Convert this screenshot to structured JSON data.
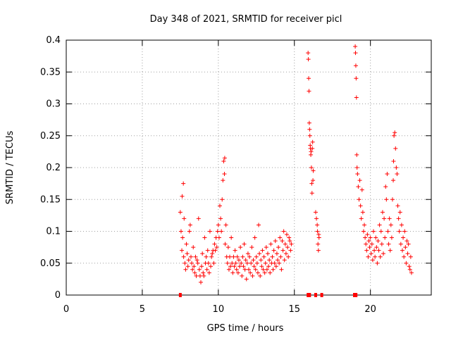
{
  "chart_data": {
    "type": "scatter",
    "title": "Day 348 of 2021, SRMTID for receiver picl",
    "xlabel": "GPS time / hours",
    "ylabel": "SRMTID / TECUs",
    "xlim": [
      0,
      24
    ],
    "ylim": [
      0,
      0.4
    ],
    "xticks": [
      0,
      5,
      10,
      15,
      20
    ],
    "xtick_labels": [
      "0",
      "5",
      "10",
      "15",
      "20"
    ],
    "yticks": [
      0,
      0.05,
      0.1,
      0.15,
      0.2,
      0.25,
      0.3,
      0.35,
      0.4
    ],
    "ytick_labels": [
      "0",
      "0.05",
      "0.1",
      "0.15",
      "0.2",
      "0.25",
      "0.3",
      "0.35",
      "0.4"
    ],
    "grid": true,
    "marker": "+",
    "color": "#ff0000",
    "series": [
      {
        "name": "SRMTID",
        "points": [
          [
            7.5,
            0.13
          ],
          [
            7.55,
            0.1
          ],
          [
            7.6,
            0.07
          ],
          [
            7.62,
            0.155
          ],
          [
            7.65,
            0.09
          ],
          [
            7.7,
            0.175
          ],
          [
            7.72,
            0.06
          ],
          [
            7.75,
            0.12
          ],
          [
            7.8,
            0.05
          ],
          [
            7.85,
            0.04
          ],
          [
            7.9,
            0.08
          ],
          [
            7.95,
            0.065
          ],
          [
            8.0,
            0.045
          ],
          [
            8.05,
            0.055
          ],
          [
            8.1,
            0.1
          ],
          [
            8.15,
            0.11
          ],
          [
            8.2,
            0.06
          ],
          [
            8.25,
            0.05
          ],
          [
            8.3,
            0.04
          ],
          [
            8.35,
            0.075
          ],
          [
            8.4,
            0.045
          ],
          [
            8.45,
            0.035
          ],
          [
            8.5,
            0.06
          ],
          [
            8.55,
            0.03
          ],
          [
            8.6,
            0.055
          ],
          [
            8.65,
            0.05
          ],
          [
            8.7,
            0.12
          ],
          [
            8.75,
            0.04
          ],
          [
            8.8,
            0.03
          ],
          [
            8.85,
            0.02
          ],
          [
            8.9,
            0.045
          ],
          [
            8.95,
            0.065
          ],
          [
            9.0,
            0.035
          ],
          [
            9.05,
            0.03
          ],
          [
            9.1,
            0.09
          ],
          [
            9.15,
            0.05
          ],
          [
            9.2,
            0.06
          ],
          [
            9.25,
            0.04
          ],
          [
            9.3,
            0.07
          ],
          [
            9.35,
            0.05
          ],
          [
            9.4,
            0.035
          ],
          [
            9.45,
            0.1
          ],
          [
            9.5,
            0.045
          ],
          [
            9.55,
            0.06
          ],
          [
            9.6,
            0.065
          ],
          [
            9.65,
            0.07
          ],
          [
            9.7,
            0.05
          ],
          [
            9.75,
            0.08
          ],
          [
            9.8,
            0.07
          ],
          [
            9.85,
            0.09
          ],
          [
            9.9,
            0.075
          ],
          [
            9.95,
            0.1
          ],
          [
            10.0,
            0.11
          ],
          [
            10.05,
            0.09
          ],
          [
            10.1,
            0.14
          ],
          [
            10.15,
            0.12
          ],
          [
            10.2,
            0.1
          ],
          [
            10.25,
            0.15
          ],
          [
            10.3,
            0.18
          ],
          [
            10.35,
            0.21
          ],
          [
            10.4,
            0.19
          ],
          [
            10.42,
            0.215
          ],
          [
            10.45,
            0.08
          ],
          [
            10.5,
            0.11
          ],
          [
            10.55,
            0.06
          ],
          [
            10.6,
            0.05
          ],
          [
            10.65,
            0.075
          ],
          [
            10.7,
            0.04
          ],
          [
            10.75,
            0.06
          ],
          [
            10.8,
            0.045
          ],
          [
            10.85,
            0.09
          ],
          [
            10.9,
            0.05
          ],
          [
            10.95,
            0.035
          ],
          [
            11.0,
            0.06
          ],
          [
            11.05,
            0.045
          ],
          [
            11.1,
            0.07
          ],
          [
            11.15,
            0.05
          ],
          [
            11.2,
            0.04
          ],
          [
            11.25,
            0.06
          ],
          [
            11.3,
            0.035
          ],
          [
            11.35,
            0.055
          ],
          [
            11.4,
            0.045
          ],
          [
            11.45,
            0.075
          ],
          [
            11.5,
            0.05
          ],
          [
            11.55,
            0.03
          ],
          [
            11.6,
            0.06
          ],
          [
            11.65,
            0.045
          ],
          [
            11.7,
            0.08
          ],
          [
            11.75,
            0.04
          ],
          [
            11.8,
            0.055
          ],
          [
            11.85,
            0.025
          ],
          [
            11.9,
            0.05
          ],
          [
            11.95,
            0.065
          ],
          [
            12.0,
            0.04
          ],
          [
            12.05,
            0.06
          ],
          [
            12.1,
            0.035
          ],
          [
            12.15,
            0.05
          ],
          [
            12.2,
            0.075
          ],
          [
            12.25,
            0.03
          ],
          [
            12.3,
            0.055
          ],
          [
            12.35,
            0.045
          ],
          [
            12.4,
            0.09
          ],
          [
            12.45,
            0.04
          ],
          [
            12.5,
            0.06
          ],
          [
            12.55,
            0.05
          ],
          [
            12.6,
            0.035
          ],
          [
            12.65,
            0.11
          ],
          [
            12.7,
            0.065
          ],
          [
            12.75,
            0.03
          ],
          [
            12.8,
            0.055
          ],
          [
            12.85,
            0.045
          ],
          [
            12.9,
            0.07
          ],
          [
            12.95,
            0.04
          ],
          [
            13.0,
            0.06
          ],
          [
            13.05,
            0.035
          ],
          [
            13.1,
            0.05
          ],
          [
            13.15,
            0.075
          ],
          [
            13.2,
            0.04
          ],
          [
            13.25,
            0.065
          ],
          [
            13.3,
            0.045
          ],
          [
            13.35,
            0.055
          ],
          [
            13.4,
            0.035
          ],
          [
            13.45,
            0.08
          ],
          [
            13.5,
            0.05
          ],
          [
            13.55,
            0.06
          ],
          [
            13.6,
            0.04
          ],
          [
            13.65,
            0.07
          ],
          [
            13.7,
            0.05
          ],
          [
            13.75,
            0.085
          ],
          [
            13.8,
            0.045
          ],
          [
            13.85,
            0.065
          ],
          [
            13.9,
            0.055
          ],
          [
            13.95,
            0.075
          ],
          [
            14.0,
            0.05
          ],
          [
            14.05,
            0.09
          ],
          [
            14.1,
            0.06
          ],
          [
            14.15,
            0.04
          ],
          [
            14.2,
            0.085
          ],
          [
            14.25,
            0.07
          ],
          [
            14.3,
            0.1
          ],
          [
            14.35,
            0.055
          ],
          [
            14.4,
            0.08
          ],
          [
            14.45,
            0.065
          ],
          [
            14.5,
            0.095
          ],
          [
            14.55,
            0.075
          ],
          [
            14.6,
            0.06
          ],
          [
            14.65,
            0.09
          ],
          [
            14.7,
            0.085
          ],
          [
            14.75,
            0.07
          ],
          [
            14.8,
            0.08
          ],
          [
            15.9,
            0.38
          ],
          [
            15.92,
            0.37
          ],
          [
            15.94,
            0.34
          ],
          [
            15.96,
            0.32
          ],
          [
            15.98,
            0.27
          ],
          [
            16.0,
            0.26
          ],
          [
            16.02,
            0.25
          ],
          [
            16.04,
            0.235
          ],
          [
            16.06,
            0.23
          ],
          [
            16.08,
            0.22
          ],
          [
            16.1,
            0.225
          ],
          [
            16.12,
            0.2
          ],
          [
            16.14,
            0.175
          ],
          [
            16.16,
            0.16
          ],
          [
            16.18,
            0.23
          ],
          [
            16.2,
            0.24
          ],
          [
            16.22,
            0.18
          ],
          [
            16.24,
            0.195
          ],
          [
            16.4,
            0.13
          ],
          [
            16.45,
            0.12
          ],
          [
            16.5,
            0.11
          ],
          [
            16.52,
            0.1
          ],
          [
            16.55,
            0.08
          ],
          [
            16.58,
            0.07
          ],
          [
            16.6,
            0.095
          ],
          [
            16.62,
            0.09
          ],
          [
            19.0,
            0.39
          ],
          [
            19.02,
            0.38
          ],
          [
            19.04,
            0.36
          ],
          [
            19.06,
            0.34
          ],
          [
            19.08,
            0.31
          ],
          [
            19.1,
            0.22
          ],
          [
            19.12,
            0.2
          ],
          [
            19.15,
            0.19
          ],
          [
            19.2,
            0.17
          ],
          [
            19.25,
            0.15
          ],
          [
            19.3,
            0.18
          ],
          [
            19.35,
            0.14
          ],
          [
            19.4,
            0.12
          ],
          [
            19.45,
            0.165
          ],
          [
            19.5,
            0.13
          ],
          [
            19.55,
            0.1
          ],
          [
            19.6,
            0.11
          ],
          [
            19.65,
            0.09
          ],
          [
            19.7,
            0.08
          ],
          [
            19.75,
            0.07
          ],
          [
            19.8,
            0.095
          ],
          [
            19.85,
            0.06
          ],
          [
            19.9,
            0.085
          ],
          [
            19.95,
            0.075
          ],
          [
            20.0,
            0.09
          ],
          [
            20.05,
            0.065
          ],
          [
            20.1,
            0.08
          ],
          [
            20.15,
            0.055
          ],
          [
            20.2,
            0.1
          ],
          [
            20.25,
            0.07
          ],
          [
            20.3,
            0.06
          ],
          [
            20.35,
            0.09
          ],
          [
            20.4,
            0.075
          ],
          [
            20.45,
            0.05
          ],
          [
            20.5,
            0.085
          ],
          [
            20.55,
            0.07
          ],
          [
            20.6,
            0.11
          ],
          [
            20.65,
            0.06
          ],
          [
            20.7,
            0.1
          ],
          [
            20.75,
            0.08
          ],
          [
            20.8,
            0.13
          ],
          [
            20.85,
            0.065
          ],
          [
            20.9,
            0.12
          ],
          [
            20.95,
            0.09
          ],
          [
            21.0,
            0.17
          ],
          [
            21.05,
            0.15
          ],
          [
            21.1,
            0.19
          ],
          [
            21.15,
            0.1
          ],
          [
            21.2,
            0.08
          ],
          [
            21.25,
            0.12
          ],
          [
            21.3,
            0.07
          ],
          [
            21.35,
            0.11
          ],
          [
            21.4,
            0.09
          ],
          [
            21.45,
            0.15
          ],
          [
            21.5,
            0.18
          ],
          [
            21.52,
            0.21
          ],
          [
            21.55,
            0.25
          ],
          [
            21.6,
            0.255
          ],
          [
            21.65,
            0.23
          ],
          [
            21.7,
            0.2
          ],
          [
            21.75,
            0.19
          ],
          [
            21.8,
            0.14
          ],
          [
            21.85,
            0.12
          ],
          [
            21.9,
            0.1
          ],
          [
            21.95,
            0.13
          ],
          [
            22.0,
            0.08
          ],
          [
            22.05,
            0.11
          ],
          [
            22.1,
            0.07
          ],
          [
            22.15,
            0.09
          ],
          [
            22.2,
            0.06
          ],
          [
            22.25,
            0.1
          ],
          [
            22.3,
            0.075
          ],
          [
            22.35,
            0.05
          ],
          [
            22.4,
            0.085
          ],
          [
            22.45,
            0.065
          ],
          [
            22.5,
            0.08
          ],
          [
            22.55,
            0.045
          ],
          [
            22.6,
            0.04
          ],
          [
            22.65,
            0.06
          ],
          [
            22.7,
            0.035
          ]
        ]
      }
    ],
    "baseline_markers": [
      7.5,
      15.9,
      16.0,
      16.4,
      16.8,
      18.95,
      19.05
    ]
  }
}
